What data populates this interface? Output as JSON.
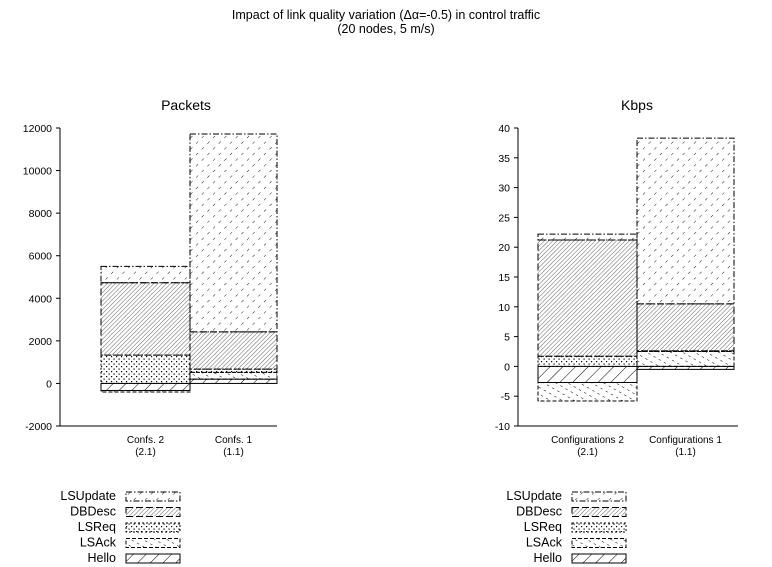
{
  "figure": {
    "title_line1": "Impact of link quality variation (Δα=-0.5) in control traffic",
    "title_line2": "(20 nodes, 5 m/s)"
  },
  "chart_data": [
    {
      "type": "bar",
      "stacked": true,
      "title": "Packets",
      "xlabel": "",
      "ylabel": "",
      "ylim": [
        -2000,
        12000
      ],
      "yticks": [
        -2000,
        0,
        2000,
        4000,
        6000,
        8000,
        10000,
        12000
      ],
      "categories": [
        {
          "line1": "Confs. 2",
          "line2": "(2.1)"
        },
        {
          "line1": "Confs. 1",
          "line2": "(1.1)"
        }
      ],
      "series": [
        {
          "name": "Hello",
          "values": [
            -330,
            200
          ]
        },
        {
          "name": "LSAck",
          "values": [
            -70,
            320
          ]
        },
        {
          "name": "LSReq",
          "values": [
            1330,
            150
          ]
        },
        {
          "name": "DBDesc",
          "values": [
            3400,
            1750
          ]
        },
        {
          "name": "LSUpdate",
          "values": [
            770,
            9300
          ]
        }
      ],
      "legend": {
        "position": "below",
        "order": [
          "LSUpdate",
          "DBDesc",
          "LSReq",
          "LSAck",
          "Hello"
        ]
      }
    },
    {
      "type": "bar",
      "stacked": true,
      "title": "Kbps",
      "xlabel": "",
      "ylabel": "",
      "ylim": [
        -10,
        40
      ],
      "yticks": [
        -10,
        -5,
        0,
        5,
        10,
        15,
        20,
        25,
        30,
        35,
        40
      ],
      "categories": [
        {
          "line1": "Configurations 2",
          "line2": "(2.1)"
        },
        {
          "line1": "Configurations 1",
          "line2": "(1.1)"
        }
      ],
      "series": [
        {
          "name": "Hello",
          "values": [
            -2.7,
            -0.5
          ]
        },
        {
          "name": "LSAck",
          "values": [
            -3.1,
            2.5
          ]
        },
        {
          "name": "LSReq",
          "values": [
            1.7,
            0.1
          ]
        },
        {
          "name": "DBDesc",
          "values": [
            19.5,
            7.9
          ]
        },
        {
          "name": "LSUpdate",
          "values": [
            1.0,
            27.8
          ]
        }
      ],
      "legend": {
        "position": "below",
        "order": [
          "LSUpdate",
          "DBDesc",
          "LSReq",
          "LSAck",
          "Hello"
        ]
      }
    }
  ]
}
